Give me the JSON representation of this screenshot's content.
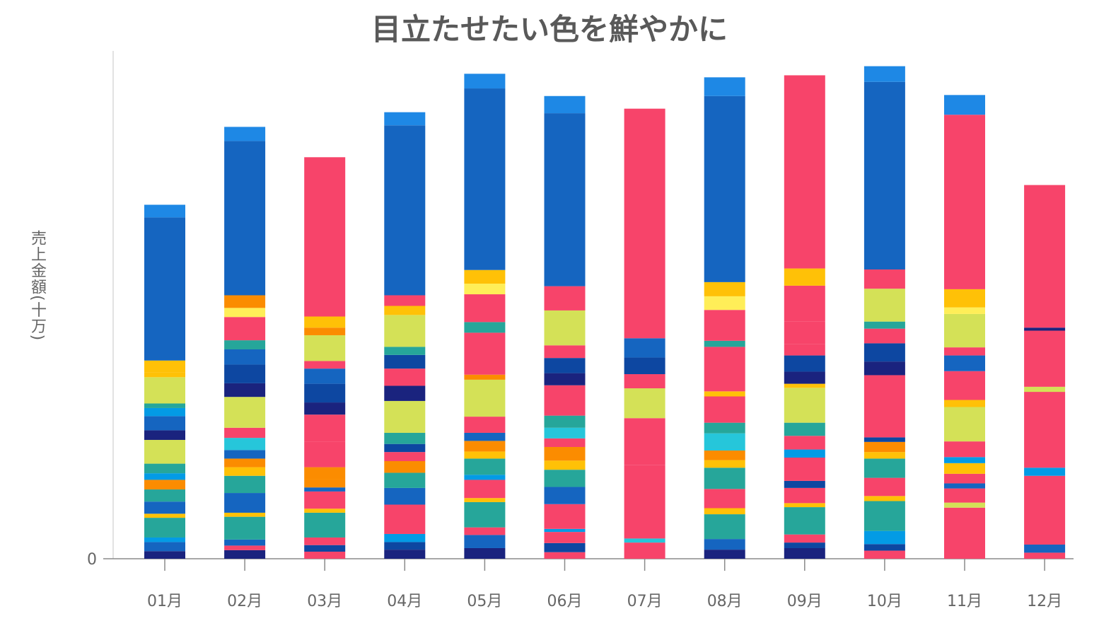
{
  "chart_data": {
    "type": "bar",
    "stacked": true,
    "title": "目立たせたい色を鮮やかに",
    "xlabel": "",
    "ylabel": "売上金額(十万)",
    "y_ticks": [
      "0"
    ],
    "ylim": [
      0,
      100
    ],
    "grid": false,
    "legend": "none",
    "categories": [
      "01月",
      "02月",
      "03月",
      "04月",
      "05月",
      "06月",
      "07月",
      "08月",
      "09月",
      "10月",
      "11月",
      "12月"
    ],
    "palette": {
      "A": "#1565C0",
      "B": "#1E88E5",
      "C": "#F7446A",
      "D": "#D4E157",
      "E": "#26A69A",
      "F": "#FFC107",
      "G": "#FB8C00",
      "H": "#1A237E",
      "I": "#0D47A1",
      "J": "#26C6DA",
      "K": "#FFEE58",
      "L": "#039BE5"
    },
    "stacks": [
      [
        [
          "H",
          1.5
        ],
        [
          "A",
          1.8
        ],
        [
          "L",
          0.9
        ],
        [
          "E",
          3.9
        ],
        [
          "F",
          0.8
        ],
        [
          "A",
          2.4
        ],
        [
          "E",
          2.4
        ],
        [
          "G",
          1.9
        ],
        [
          "L",
          1.3
        ],
        [
          "E",
          1.9
        ],
        [
          "D",
          4.7
        ],
        [
          "H",
          1.9
        ],
        [
          "A",
          2.8
        ],
        [
          "L",
          1.6
        ],
        [
          "E",
          0.9
        ],
        [
          "D",
          5.2
        ],
        [
          "F",
          0.9
        ],
        [
          "F",
          2.4
        ],
        [
          "A",
          28.3
        ],
        [
          "B",
          2.5
        ]
      ],
      [
        [
          "H",
          1.7
        ],
        [
          "C",
          0.9
        ],
        [
          "A",
          1.2
        ],
        [
          "E",
          4.5
        ],
        [
          "F",
          0.8
        ],
        [
          "A",
          3.9
        ],
        [
          "E",
          3.4
        ],
        [
          "F",
          1.7
        ],
        [
          "G",
          1.7
        ],
        [
          "A",
          1.7
        ],
        [
          "J",
          2.4
        ],
        [
          "C",
          2.0
        ],
        [
          "D",
          6.1
        ],
        [
          "H",
          2.7
        ],
        [
          "I",
          3.7
        ],
        [
          "A",
          3.0
        ],
        [
          "E",
          1.8
        ],
        [
          "C",
          4.6
        ],
        [
          "K",
          1.8
        ],
        [
          "G",
          2.5
        ],
        [
          "A",
          30.5
        ],
        [
          "B",
          2.8
        ]
      ],
      [
        [
          "C",
          1.4
        ],
        [
          "I",
          1.3
        ],
        [
          "C",
          1.5
        ],
        [
          "E",
          4.9
        ],
        [
          "F",
          0.8
        ],
        [
          "C",
          3.4
        ],
        [
          "A",
          0.8
        ],
        [
          "G",
          1.7
        ],
        [
          "G",
          2.3
        ],
        [
          "C",
          5.1
        ],
        [
          "C",
          5.3
        ],
        [
          "H",
          2.4
        ],
        [
          "I",
          3.7
        ],
        [
          "A",
          3.0
        ],
        [
          "C",
          1.5
        ],
        [
          "D",
          5.1
        ],
        [
          "G",
          1.5
        ],
        [
          "F",
          2.2
        ],
        [
          "C",
          31.5
        ]
      ],
      [
        [
          "H",
          1.8
        ],
        [
          "I",
          1.5
        ],
        [
          "L",
          1.6
        ],
        [
          "C",
          5.8
        ],
        [
          "A",
          3.3
        ],
        [
          "E",
          3.0
        ],
        [
          "G",
          2.3
        ],
        [
          "C",
          1.8
        ],
        [
          "I",
          1.6
        ],
        [
          "E",
          2.2
        ],
        [
          "D",
          6.3
        ],
        [
          "H",
          3.0
        ],
        [
          "C",
          3.4
        ],
        [
          "I",
          2.7
        ],
        [
          "E",
          1.6
        ],
        [
          "D",
          6.3
        ],
        [
          "F",
          1.8
        ],
        [
          "C",
          2.1
        ],
        [
          "A",
          33.6
        ],
        [
          "B",
          2.6
        ]
      ],
      [
        [
          "H",
          2.1
        ],
        [
          "A",
          2.6
        ],
        [
          "C",
          1.5
        ],
        [
          "E",
          5.0
        ],
        [
          "F",
          0.8
        ],
        [
          "C",
          3.6
        ],
        [
          "L",
          1.0
        ],
        [
          "E",
          3.2
        ],
        [
          "F",
          1.4
        ],
        [
          "G",
          2.1
        ],
        [
          "A",
          1.6
        ],
        [
          "C",
          3.2
        ],
        [
          "D",
          7.3
        ],
        [
          "G",
          1.0
        ],
        [
          "C",
          8.3
        ],
        [
          "E",
          2.1
        ],
        [
          "C",
          5.5
        ],
        [
          "K",
          2.1
        ],
        [
          "F",
          2.7
        ],
        [
          "A",
          35.9
        ],
        [
          "B",
          2.9
        ]
      ],
      [
        [
          "C",
          1.3
        ],
        [
          "I",
          1.8
        ],
        [
          "C",
          2.2
        ],
        [
          "L",
          0.6
        ],
        [
          "C",
          4.9
        ],
        [
          "A",
          3.4
        ],
        [
          "E",
          3.4
        ],
        [
          "F",
          1.8
        ],
        [
          "G",
          2.7
        ],
        [
          "C",
          1.7
        ],
        [
          "J",
          2.1
        ],
        [
          "E",
          2.4
        ],
        [
          "C",
          6.0
        ],
        [
          "H",
          2.4
        ],
        [
          "I",
          3.0
        ],
        [
          "C",
          2.5
        ],
        [
          "D",
          6.9
        ],
        [
          "C",
          4.8
        ],
        [
          "A",
          34.2
        ],
        [
          "B",
          3.4
        ]
      ],
      [
        [
          "C",
          3.2
        ],
        [
          "J",
          0.8
        ],
        [
          "C",
          14.5
        ],
        [
          "C",
          9.3
        ],
        [
          "D",
          5.9
        ],
        [
          "C",
          2.8
        ],
        [
          "I",
          3.3
        ],
        [
          "A",
          3.8
        ],
        [
          "C",
          45.4
        ]
      ],
      [
        [
          "H",
          1.8
        ],
        [
          "A",
          2.1
        ],
        [
          "E",
          4.9
        ],
        [
          "F",
          1.2
        ],
        [
          "C",
          3.8
        ],
        [
          "E",
          4.2
        ],
        [
          "F",
          1.5
        ],
        [
          "G",
          1.9
        ],
        [
          "J",
          3.4
        ],
        [
          "E",
          2.1
        ],
        [
          "C",
          5.2
        ],
        [
          "F",
          1.0
        ],
        [
          "C",
          8.8
        ],
        [
          "E",
          1.2
        ],
        [
          "C",
          6.1
        ],
        [
          "K",
          2.7
        ],
        [
          "F",
          2.8
        ],
        [
          "A",
          36.8
        ],
        [
          "B",
          3.7
        ]
      ],
      [
        [
          "H",
          2.1
        ],
        [
          "I",
          1.1
        ],
        [
          "C",
          1.6
        ],
        [
          "E",
          5.4
        ],
        [
          "F",
          0.8
        ],
        [
          "C",
          3.0
        ],
        [
          "I",
          1.4
        ],
        [
          "C",
          4.6
        ],
        [
          "L",
          1.6
        ],
        [
          "C",
          2.7
        ],
        [
          "E",
          2.6
        ],
        [
          "D",
          6.9
        ],
        [
          "F",
          0.8
        ],
        [
          "H",
          2.4
        ],
        [
          "I",
          3.2
        ],
        [
          "C",
          2.3
        ],
        [
          "C",
          4.4
        ],
        [
          "C",
          7.1
        ],
        [
          "F",
          3.4
        ],
        [
          "C",
          38.2
        ]
      ],
      [
        [
          "C",
          1.6
        ],
        [
          "I",
          1.3
        ],
        [
          "L",
          2.6
        ],
        [
          "E",
          5.9
        ],
        [
          "F",
          1.0
        ],
        [
          "C",
          3.6
        ],
        [
          "E",
          3.8
        ],
        [
          "F",
          1.3
        ],
        [
          "G",
          2.0
        ],
        [
          "I",
          0.9
        ],
        [
          "C",
          12.3
        ],
        [
          "H",
          2.7
        ],
        [
          "I",
          3.6
        ],
        [
          "C",
          2.9
        ],
        [
          "E",
          1.4
        ],
        [
          "D",
          6.5
        ],
        [
          "C",
          3.8
        ],
        [
          "A",
          37.1
        ],
        [
          "B",
          3.1
        ]
      ],
      [
        [
          "C",
          10.1
        ],
        [
          "D",
          1.0
        ],
        [
          "C",
          2.8
        ],
        [
          "A",
          1.0
        ],
        [
          "C",
          1.9
        ],
        [
          "F",
          2.1
        ],
        [
          "L",
          1.2
        ],
        [
          "C",
          3.1
        ],
        [
          "D",
          6.8
        ],
        [
          "F",
          1.4
        ],
        [
          "C",
          5.7
        ],
        [
          "A",
          3.1
        ],
        [
          "C",
          1.6
        ],
        [
          "D",
          6.6
        ],
        [
          "K",
          1.3
        ],
        [
          "F",
          3.6
        ],
        [
          "C",
          34.5
        ],
        [
          "B",
          3.9
        ]
      ],
      [
        [
          "C",
          1.2
        ],
        [
          "A",
          1.6
        ],
        [
          "C",
          13.6
        ],
        [
          "L",
          1.6
        ],
        [
          "C",
          15.0
        ],
        [
          "D",
          1.0
        ],
        [
          "C",
          11.1
        ],
        [
          "H",
          0.6
        ],
        [
          "C",
          28.2
        ]
      ]
    ]
  }
}
